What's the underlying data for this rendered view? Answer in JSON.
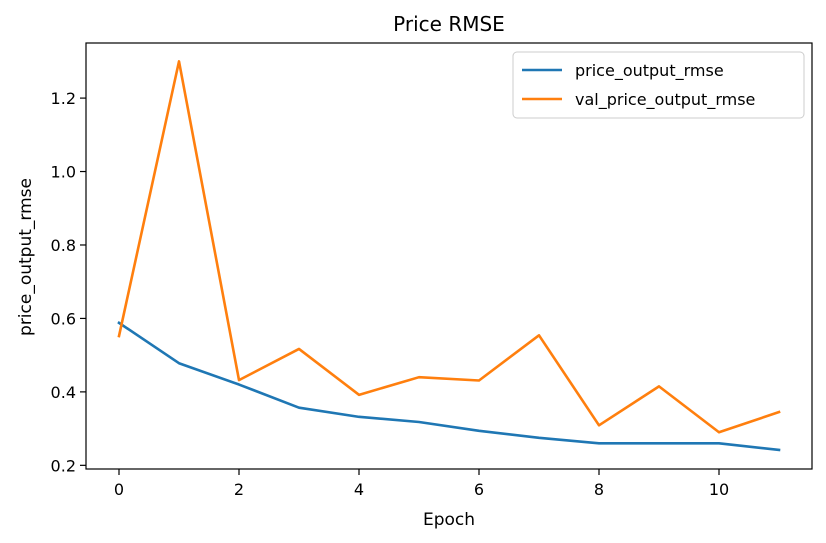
{
  "chart_data": {
    "type": "line",
    "title": "Price RMSE",
    "xlabel": "Epoch",
    "ylabel": "price_output_rmse",
    "x": [
      0,
      1,
      2,
      3,
      4,
      5,
      6,
      7,
      8,
      9,
      10,
      11
    ],
    "xlim": [
      -0.55,
      11.55
    ],
    "ylim": [
      0.19,
      1.35
    ],
    "xticks": [
      0,
      2,
      4,
      6,
      8,
      10
    ],
    "yticks": [
      0.2,
      0.4,
      0.6,
      0.8,
      1.0,
      1.2
    ],
    "xtick_labels": [
      "0",
      "2",
      "4",
      "6",
      "8",
      "10"
    ],
    "ytick_labels": [
      "0.2",
      "0.4",
      "0.6",
      "0.8",
      "1.0",
      "1.2"
    ],
    "grid": false,
    "legend_position": "top-right",
    "series": [
      {
        "name": "price_output_rmse",
        "color": "#1f77b4",
        "values": [
          0.588,
          0.478,
          0.42,
          0.357,
          0.332,
          0.318,
          0.294,
          0.275,
          0.26,
          0.26,
          0.26,
          0.242
        ]
      },
      {
        "name": "val_price_output_rmse",
        "color": "#ff7f0e",
        "values": [
          0.552,
          1.3,
          0.432,
          0.517,
          0.392,
          0.44,
          0.431,
          0.554,
          0.309,
          0.415,
          0.29,
          0.345
        ]
      }
    ]
  }
}
